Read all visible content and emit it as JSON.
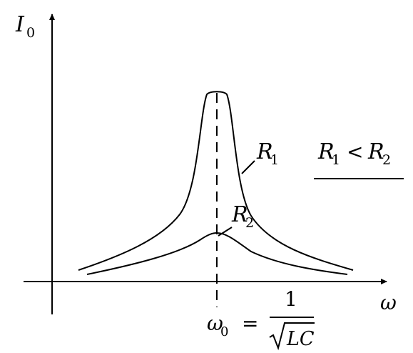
{
  "labels": {
    "y_axis_main": "I",
    "y_axis_sub": "0",
    "x_axis": "ω",
    "curve1_main": "R",
    "curve1_sub": "1",
    "curve2_main": "R",
    "curve2_sub": "2",
    "condition_r1": "R",
    "condition_r1_sub": "1",
    "condition_op": "<",
    "condition_r2": "R",
    "condition_r2_sub": "2",
    "omega0_main": "ω",
    "omega0_sub": "0",
    "omega0_eq": "=",
    "omega0_num": "1",
    "omega0_den": "LC"
  },
  "colors": {
    "ink": "#000000",
    "background": "#ffffff"
  }
}
